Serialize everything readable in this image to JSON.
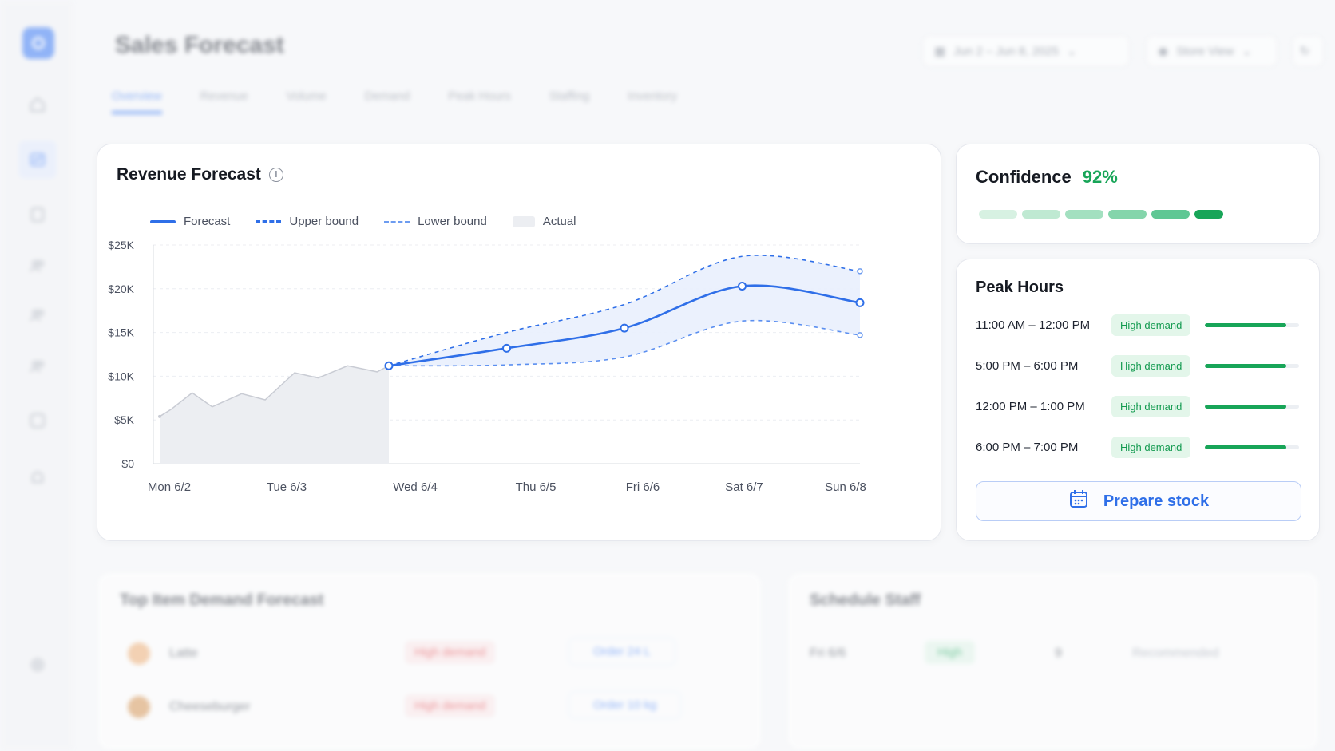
{
  "header": {
    "title": "Sales Forecast",
    "date_range": "Jun 2 – Jun 8, 2025",
    "view_selector": "Store View"
  },
  "tabs": [
    {
      "label": "Overview",
      "active": true
    },
    {
      "label": "Revenue"
    },
    {
      "label": "Volume"
    },
    {
      "label": "Demand"
    },
    {
      "label": "Peak Hours"
    },
    {
      "label": "Staffing"
    },
    {
      "label": "Inventory"
    }
  ],
  "sidebar": {
    "icons": [
      "home-icon",
      "chart-icon",
      "document-icon",
      "users-icon",
      "team-icon",
      "people-icon",
      "report-icon",
      "bell-icon",
      "settings-icon"
    ],
    "active_index": 1
  },
  "revenue_forecast": {
    "title": "Revenue Forecast",
    "legend": {
      "forecast": "Forecast",
      "upper": "Upper bound",
      "lower": "Lower bound",
      "actual": "Actual"
    }
  },
  "chart_data": {
    "type": "line",
    "title": "Revenue Forecast",
    "categories": [
      "Mon 6/2",
      "Tue 6/3",
      "Wed 6/4",
      "Thu 6/5",
      "Fri 6/6",
      "Sat 6/7",
      "Sun 6/8"
    ],
    "y_ticks": [
      "$0",
      "$5K",
      "$10K",
      "$15K",
      "$20K",
      "$25K"
    ],
    "ylim": [
      0,
      25000
    ],
    "grid": true,
    "legend_position": "top-left",
    "actual": {
      "name": "Actual",
      "x": [
        0,
        0.15,
        0.33,
        0.5,
        0.75,
        0.95,
        1.2,
        1.4,
        1.65,
        1.9,
        2.0
      ],
      "y": [
        5400,
        6200,
        8100,
        6500,
        8000,
        7300,
        10400,
        9800,
        11200,
        10500,
        11200
      ]
    },
    "series": [
      {
        "name": "Forecast",
        "x": [
          2,
          3,
          4,
          5,
          6
        ],
        "y": [
          11200,
          13200,
          15500,
          20300,
          18400
        ]
      },
      {
        "name": "Upper bound",
        "x": [
          2,
          3,
          4,
          5,
          6
        ],
        "y": [
          11200,
          15000,
          18200,
          23700,
          22000
        ]
      },
      {
        "name": "Lower bound",
        "x": [
          2,
          3,
          4,
          5,
          6
        ],
        "y": [
          11200,
          11300,
          12200,
          16300,
          14700
        ]
      }
    ],
    "colors": {
      "forecast": "#2f6fe8",
      "band": "#e9f0fd",
      "actual": "#eceef2",
      "actual_line": "#c9ccd4"
    }
  },
  "confidence": {
    "label": "Confidence",
    "value": "92%",
    "segments": [
      "#d7f1e2",
      "#bfe9d2",
      "#a3e0c0",
      "#84d5ab",
      "#5fc794",
      "#18a558"
    ]
  },
  "peak_hours": {
    "title": "Peak Hours",
    "rows": [
      {
        "time": "11:00 AM – 12:00 PM",
        "badge": "High demand",
        "level": 0.86
      },
      {
        "time": "5:00 PM – 6:00 PM",
        "badge": "High demand",
        "level": 0.86
      },
      {
        "time": "12:00 PM – 1:00 PM",
        "badge": "High demand",
        "level": 0.86
      },
      {
        "time": "6:00 PM – 7:00 PM",
        "badge": "High demand",
        "level": 0.86
      }
    ],
    "action_label": "Prepare stock"
  },
  "top_items": {
    "title": "Top Item Demand Forecast",
    "rows": [
      {
        "name": "Latte",
        "badge": "High demand",
        "action": "Order 24 L"
      },
      {
        "name": "Cheeseburger",
        "badge": "High demand",
        "action": "Order 10 kg"
      }
    ]
  },
  "schedule": {
    "title": "Schedule Staff",
    "rows": [
      {
        "day": "Fri 6/6",
        "level": "High",
        "count": "9",
        "note": "Recommended"
      }
    ]
  }
}
